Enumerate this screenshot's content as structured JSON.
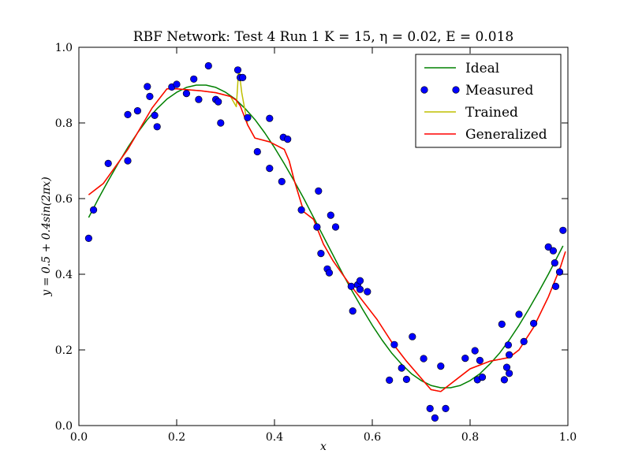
{
  "chart_data": {
    "type": "line",
    "title": "RBF Network: Test 4 Run 1 K = 15, η = 0.02, E = 0.018",
    "xlabel": "x",
    "ylabel": "y = 0.5 + 0.4sin(2πx)",
    "xlim": [
      0.0,
      1.0
    ],
    "ylim": [
      0.0,
      1.0
    ],
    "x_ticks": [
      "0.0",
      "0.2",
      "0.4",
      "0.6",
      "0.8",
      "1.0"
    ],
    "y_ticks": [
      "0.0",
      "0.2",
      "0.4",
      "0.6",
      "0.8",
      "1.0"
    ],
    "grid": false,
    "legend_position": "top-right",
    "series": [
      {
        "name": "Ideal",
        "style": "line",
        "color": "#008000",
        "x": [
          0.02,
          0.04,
          0.06,
          0.08,
          0.1,
          0.12,
          0.14,
          0.16,
          0.18,
          0.2,
          0.22,
          0.24,
          0.26,
          0.28,
          0.3,
          0.32,
          0.34,
          0.36,
          0.38,
          0.4,
          0.42,
          0.44,
          0.46,
          0.48,
          0.5,
          0.52,
          0.54,
          0.56,
          0.58,
          0.6,
          0.62,
          0.64,
          0.66,
          0.68,
          0.7,
          0.72,
          0.74,
          0.76,
          0.78,
          0.8,
          0.82,
          0.84,
          0.86,
          0.88,
          0.9,
          0.92,
          0.94,
          0.96,
          0.98,
          0.99
        ],
        "y": [
          0.55,
          0.6,
          0.647,
          0.692,
          0.735,
          0.774,
          0.809,
          0.838,
          0.863,
          0.881,
          0.894,
          0.9,
          0.9,
          0.894,
          0.881,
          0.863,
          0.838,
          0.809,
          0.774,
          0.735,
          0.692,
          0.647,
          0.6,
          0.55,
          0.5,
          0.45,
          0.4,
          0.353,
          0.308,
          0.265,
          0.226,
          0.191,
          0.162,
          0.137,
          0.119,
          0.106,
          0.1,
          0.1,
          0.106,
          0.119,
          0.137,
          0.162,
          0.191,
          0.226,
          0.265,
          0.308,
          0.353,
          0.4,
          0.45,
          0.475
        ]
      },
      {
        "name": "Measured",
        "style": "scatter",
        "color": "#0000ff",
        "x": [
          0.02,
          0.03,
          0.06,
          0.1,
          0.1,
          0.12,
          0.14,
          0.145,
          0.155,
          0.16,
          0.19,
          0.2,
          0.22,
          0.235,
          0.245,
          0.265,
          0.28,
          0.285,
          0.29,
          0.325,
          0.33,
          0.335,
          0.345,
          0.365,
          0.39,
          0.39,
          0.415,
          0.418,
          0.427,
          0.455,
          0.487,
          0.49,
          0.495,
          0.508,
          0.512,
          0.515,
          0.525,
          0.557,
          0.56,
          0.57,
          0.575,
          0.575,
          0.59,
          0.635,
          0.645,
          0.66,
          0.67,
          0.682,
          0.705,
          0.718,
          0.728,
          0.74,
          0.75,
          0.79,
          0.81,
          0.815,
          0.82,
          0.825,
          0.865,
          0.87,
          0.875,
          0.878,
          0.88,
          0.88,
          0.9,
          0.91,
          0.93,
          0.96,
          0.97,
          0.973,
          0.975,
          0.983,
          0.99
        ],
        "y": [
          0.495,
          0.57,
          0.693,
          0.822,
          0.7,
          0.832,
          0.896,
          0.87,
          0.82,
          0.79,
          0.895,
          0.902,
          0.878,
          0.916,
          0.862,
          0.951,
          0.862,
          0.856,
          0.8,
          0.94,
          0.92,
          0.92,
          0.814,
          0.724,
          0.68,
          0.812,
          0.645,
          0.762,
          0.757,
          0.57,
          0.525,
          0.62,
          0.455,
          0.414,
          0.404,
          0.556,
          0.525,
          0.368,
          0.303,
          0.372,
          0.383,
          0.36,
          0.354,
          0.12,
          0.214,
          0.152,
          0.122,
          0.235,
          0.177,
          0.045,
          0.02,
          0.157,
          0.045,
          0.178,
          0.198,
          0.121,
          0.172,
          0.128,
          0.268,
          0.121,
          0.154,
          0.213,
          0.187,
          0.138,
          0.294,
          0.222,
          0.27,
          0.472,
          0.462,
          0.43,
          0.368,
          0.406,
          0.516
        ]
      },
      {
        "name": "Trained",
        "style": "line",
        "color": "#bfbf00",
        "x": [
          0.02,
          0.05,
          0.1,
          0.15,
          0.18,
          0.2,
          0.25,
          0.28,
          0.31,
          0.322,
          0.327,
          0.333,
          0.345,
          0.36,
          0.39,
          0.42,
          0.43,
          0.44,
          0.46,
          0.48,
          0.5,
          0.52,
          0.55,
          0.58,
          0.61,
          0.64,
          0.67,
          0.7,
          0.72,
          0.74,
          0.77,
          0.8,
          0.84,
          0.88,
          0.9,
          0.93,
          0.96,
          0.985,
          0.995
        ],
        "y": [
          0.61,
          0.64,
          0.73,
          0.84,
          0.89,
          0.89,
          0.885,
          0.88,
          0.87,
          0.843,
          0.945,
          0.88,
          0.795,
          0.76,
          0.75,
          0.73,
          0.7,
          0.65,
          0.565,
          0.545,
          0.48,
          0.435,
          0.38,
          0.33,
          0.28,
          0.22,
          0.17,
          0.125,
          0.095,
          0.09,
          0.12,
          0.15,
          0.17,
          0.18,
          0.2,
          0.26,
          0.34,
          0.42,
          0.46
        ]
      },
      {
        "name": "Generalized",
        "style": "line",
        "color": "#ff0000",
        "x": [
          0.02,
          0.05,
          0.1,
          0.15,
          0.18,
          0.2,
          0.25,
          0.28,
          0.31,
          0.322,
          0.33,
          0.345,
          0.36,
          0.39,
          0.42,
          0.43,
          0.44,
          0.46,
          0.48,
          0.5,
          0.52,
          0.55,
          0.58,
          0.61,
          0.64,
          0.67,
          0.7,
          0.72,
          0.74,
          0.77,
          0.8,
          0.84,
          0.88,
          0.9,
          0.93,
          0.96,
          0.985,
          0.995
        ],
        "y": [
          0.61,
          0.64,
          0.73,
          0.84,
          0.89,
          0.89,
          0.885,
          0.88,
          0.87,
          0.86,
          0.845,
          0.795,
          0.76,
          0.75,
          0.73,
          0.7,
          0.65,
          0.565,
          0.545,
          0.48,
          0.435,
          0.38,
          0.33,
          0.28,
          0.22,
          0.17,
          0.125,
          0.095,
          0.09,
          0.12,
          0.15,
          0.17,
          0.18,
          0.2,
          0.26,
          0.34,
          0.42,
          0.46
        ]
      }
    ]
  }
}
